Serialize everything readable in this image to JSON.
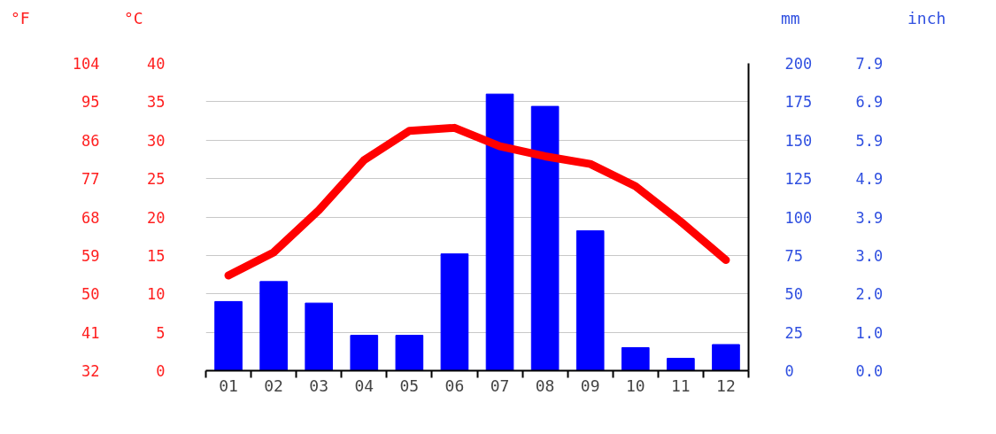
{
  "chart_data": {
    "type": "bar",
    "categories": [
      "01",
      "02",
      "03",
      "04",
      "05",
      "06",
      "07",
      "08",
      "09",
      "10",
      "11",
      "12"
    ],
    "series": [
      {
        "type": "line",
        "axis": "y",
        "color": "#ff0000",
        "values": [
          12.4,
          15.4,
          20.9,
          27.4,
          31.2,
          31.6,
          29.2,
          27.9,
          26.9,
          24.0,
          19.4,
          14.4
        ]
      },
      {
        "axis": "y2",
        "color": "#0000ff",
        "values": [
          45,
          58,
          44,
          23,
          23,
          76,
          180,
          172,
          91,
          15,
          8,
          17
        ]
      }
    ],
    "ylabel": "°C",
    "ylim": [
      0,
      40
    ],
    "yticks": [
      0,
      5,
      10,
      15,
      20,
      25,
      30,
      35,
      40
    ],
    "y3label": "°F",
    "y3lim": [
      32,
      104
    ],
    "y3ticks": [
      32,
      41,
      50,
      59,
      68,
      77,
      86,
      95,
      104
    ],
    "y2label": "mm",
    "y2lim": [
      0,
      200
    ],
    "y2ticks": [
      0,
      25,
      50,
      75,
      100,
      125,
      150,
      175,
      200
    ],
    "annotations": [
      "inch",
      "0.0",
      "1.0",
      "2.0",
      "3.0",
      "3.9",
      "4.9",
      "5.9",
      "6.9",
      "7.9"
    ],
    "grid": "y"
  }
}
